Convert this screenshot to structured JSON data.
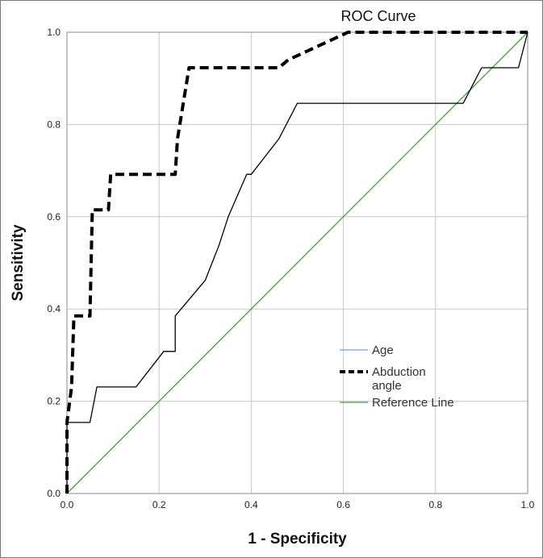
{
  "chart_data": {
    "type": "line",
    "title": "ROC Curve",
    "xlabel": "1 - Specificity",
    "ylabel": "Sensitivity",
    "xlim": [
      0,
      1
    ],
    "ylim": [
      0,
      1
    ],
    "xticks": [
      "0.0",
      "0.2",
      "0.4",
      "0.6",
      "0.8",
      "1.0"
    ],
    "yticks": [
      "0.0",
      "0.2",
      "0.4",
      "0.6",
      "0.8",
      "1.0"
    ],
    "grid": true,
    "legend_position": "lower-right",
    "series": [
      {
        "name": "Age",
        "color": "#000000",
        "legend_color": "#6fa0e0",
        "style": "solid",
        "x": [
          0,
          0,
          0.05,
          0.065,
          0.15,
          0.21,
          0.235,
          0.235,
          0.3,
          0.33,
          0.35,
          0.39,
          0.4,
          0.46,
          0.5,
          0.86,
          0.9,
          0.98,
          1.0
        ],
        "y": [
          0,
          0.154,
          0.154,
          0.231,
          0.231,
          0.308,
          0.308,
          0.385,
          0.462,
          0.538,
          0.6,
          0.692,
          0.692,
          0.769,
          0.846,
          0.846,
          0.923,
          0.923,
          1.0
        ]
      },
      {
        "name": "Abduction angle",
        "name_lines": [
          "Abduction",
          "angle"
        ],
        "color": "#000000",
        "style": "dashed",
        "x": [
          0,
          0,
          0.01,
          0.015,
          0.05,
          0.055,
          0.09,
          0.095,
          0.235,
          0.24,
          0.265,
          0.27,
          0.46,
          0.48,
          0.61,
          0.615,
          1.0
        ],
        "y": [
          0,
          0.154,
          0.231,
          0.385,
          0.385,
          0.615,
          0.615,
          0.692,
          0.692,
          0.769,
          0.923,
          0.923,
          0.923,
          0.94,
          1.0,
          1.0,
          1.0
        ]
      },
      {
        "name": "Reference Line",
        "color": "#4c9a4c",
        "style": "solid",
        "x": [
          0,
          1
        ],
        "y": [
          0,
          1
        ]
      }
    ]
  }
}
